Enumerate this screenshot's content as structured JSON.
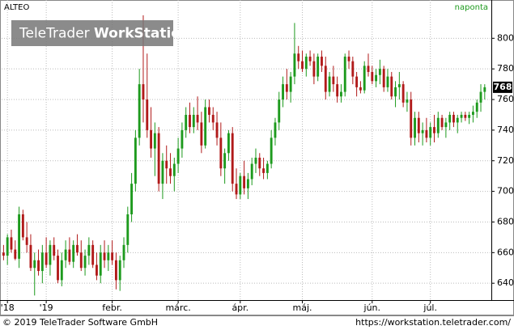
{
  "chart_data": {
    "type": "candlestick",
    "title": "ALTEO",
    "interval": "naponta",
    "watermark": {
      "brand": "TeleTrader",
      "product": "WorkStation"
    },
    "footer_left": "© 2019 TeleTrader Software GmbH",
    "footer_right": "https://workstation.teletrader.com/",
    "up_color": "#1d9a1d",
    "down_color": "#b11a1a",
    "grid": true,
    "ylim": [
      629,
      825
    ],
    "yticks": [
      640,
      660,
      680,
      700,
      720,
      740,
      760,
      780,
      800
    ],
    "xlim": [
      -0.5,
      125.5
    ],
    "xticks": [
      {
        "value": 1,
        "label": "'18"
      },
      {
        "value": 11,
        "label": "'19"
      },
      {
        "value": 28,
        "label": "febr."
      },
      {
        "value": 45,
        "label": "márc."
      },
      {
        "value": 61,
        "label": "ápr."
      },
      {
        "value": 77,
        "label": "máj."
      },
      {
        "value": 95,
        "label": "jún."
      },
      {
        "value": 110,
        "label": "júl."
      }
    ],
    "candles": [
      [
        660,
        665,
        655,
        658
      ],
      [
        658,
        672,
        652,
        670
      ],
      [
        670,
        675,
        660,
        662
      ],
      [
        662,
        668,
        655,
        656
      ],
      [
        656,
        690,
        650,
        685
      ],
      [
        685,
        688,
        668,
        670
      ],
      [
        670,
        680,
        660,
        665
      ],
      [
        665,
        672,
        648,
        650
      ],
      [
        650,
        660,
        632,
        655
      ],
      [
        655,
        662,
        645,
        648
      ],
      [
        648,
        665,
        640,
        660
      ],
      [
        660,
        670,
        650,
        652
      ],
      [
        652,
        668,
        645,
        665
      ],
      [
        665,
        670,
        655,
        658
      ],
      [
        658,
        662,
        640,
        642
      ],
      [
        642,
        660,
        638,
        655
      ],
      [
        655,
        668,
        650,
        662
      ],
      [
        662,
        670,
        652,
        654
      ],
      [
        654,
        668,
        650,
        665
      ],
      [
        665,
        672,
        658,
        660
      ],
      [
        660,
        668,
        648,
        650
      ],
      [
        650,
        662,
        645,
        658
      ],
      [
        658,
        670,
        652,
        665
      ],
      [
        665,
        668,
        650,
        652
      ],
      [
        652,
        660,
        642,
        645
      ],
      [
        645,
        665,
        640,
        660
      ],
      [
        660,
        668,
        650,
        655
      ],
      [
        655,
        665,
        648,
        660
      ],
      [
        660,
        668,
        652,
        655
      ],
      [
        655,
        660,
        636,
        642
      ],
      [
        642,
        658,
        635,
        655
      ],
      [
        655,
        670,
        650,
        665
      ],
      [
        665,
        690,
        660,
        685
      ],
      [
        685,
        712,
        680,
        705
      ],
      [
        705,
        740,
        700,
        735
      ],
      [
        735,
        780,
        730,
        770
      ],
      [
        770,
        815,
        745,
        760
      ],
      [
        760,
        790,
        735,
        740
      ],
      [
        740,
        755,
        722,
        728
      ],
      [
        728,
        745,
        710,
        738
      ],
      [
        738,
        742,
        700,
        705
      ],
      [
        705,
        725,
        695,
        720
      ],
      [
        720,
        730,
        705,
        715
      ],
      [
        715,
        725,
        705,
        710
      ],
      [
        710,
        722,
        700,
        718
      ],
      [
        718,
        735,
        712,
        728
      ],
      [
        728,
        745,
        722,
        740
      ],
      [
        740,
        755,
        735,
        750
      ],
      [
        750,
        758,
        738,
        742
      ],
      [
        742,
        755,
        738,
        750
      ],
      [
        750,
        762,
        740,
        745
      ],
      [
        745,
        752,
        725,
        730
      ],
      [
        730,
        760,
        728,
        755
      ],
      [
        755,
        760,
        745,
        750
      ],
      [
        750,
        755,
        740,
        745
      ],
      [
        745,
        752,
        730,
        735
      ],
      [
        735,
        745,
        710,
        715
      ],
      [
        715,
        728,
        705,
        725
      ],
      [
        725,
        740,
        720,
        738
      ],
      [
        738,
        742,
        700,
        705
      ],
      [
        705,
        715,
        695,
        698
      ],
      [
        698,
        712,
        695,
        710
      ],
      [
        710,
        720,
        698,
        702
      ],
      [
        702,
        712,
        695,
        708
      ],
      [
        708,
        722,
        704,
        718
      ],
      [
        718,
        728,
        712,
        722
      ],
      [
        722,
        725,
        710,
        715
      ],
      [
        715,
        722,
        708,
        712
      ],
      [
        712,
        720,
        708,
        718
      ],
      [
        718,
        740,
        715,
        735
      ],
      [
        735,
        748,
        730,
        745
      ],
      [
        745,
        765,
        740,
        760
      ],
      [
        760,
        775,
        755,
        770
      ],
      [
        770,
        780,
        760,
        765
      ],
      [
        765,
        778,
        758,
        775
      ],
      [
        775,
        810,
        770,
        790
      ],
      [
        790,
        795,
        780,
        785
      ],
      [
        785,
        792,
        778,
        780
      ],
      [
        780,
        790,
        775,
        788
      ],
      [
        788,
        792,
        782,
        785
      ],
      [
        785,
        790,
        770,
        775
      ],
      [
        775,
        790,
        772,
        788
      ],
      [
        788,
        792,
        778,
        782
      ],
      [
        782,
        788,
        760,
        765
      ],
      [
        765,
        778,
        762,
        775
      ],
      [
        775,
        782,
        765,
        770
      ],
      [
        770,
        775,
        758,
        762
      ],
      [
        762,
        770,
        758,
        765
      ],
      [
        765,
        790,
        762,
        788
      ],
      [
        788,
        792,
        780,
        785
      ],
      [
        785,
        788,
        770,
        775
      ],
      [
        775,
        778,
        762,
        768
      ],
      [
        768,
        772,
        764,
        766
      ],
      [
        766,
        785,
        764,
        782
      ],
      [
        782,
        790,
        775,
        778
      ],
      [
        778,
        782,
        770,
        772
      ],
      [
        772,
        780,
        768,
        776
      ],
      [
        776,
        786,
        770,
        780
      ],
      [
        780,
        782,
        765,
        768
      ],
      [
        768,
        780,
        765,
        775
      ],
      [
        775,
        778,
        760,
        762
      ],
      [
        762,
        772,
        755,
        768
      ],
      [
        768,
        778,
        760,
        770
      ],
      [
        770,
        772,
        755,
        758
      ],
      [
        758,
        765,
        752,
        760
      ],
      [
        760,
        765,
        730,
        735
      ],
      [
        735,
        752,
        730,
        748
      ],
      [
        748,
        752,
        732,
        738
      ],
      [
        738,
        745,
        730,
        740
      ],
      [
        740,
        748,
        732,
        735
      ],
      [
        735,
        745,
        730,
        742
      ],
      [
        742,
        750,
        732,
        738
      ],
      [
        738,
        752,
        735,
        748
      ],
      [
        748,
        750,
        740,
        742
      ],
      [
        742,
        748,
        735,
        745
      ],
      [
        745,
        752,
        740,
        750
      ],
      [
        750,
        752,
        742,
        745
      ],
      [
        745,
        750,
        738,
        748
      ],
      [
        748,
        752,
        745,
        750
      ],
      [
        750,
        752,
        746,
        748
      ],
      [
        748,
        752,
        744,
        750
      ],
      [
        750,
        756,
        745,
        752
      ],
      [
        752,
        760,
        748,
        758
      ],
      [
        758,
        770,
        752,
        765
      ],
      [
        765,
        770,
        760,
        768
      ]
    ]
  }
}
